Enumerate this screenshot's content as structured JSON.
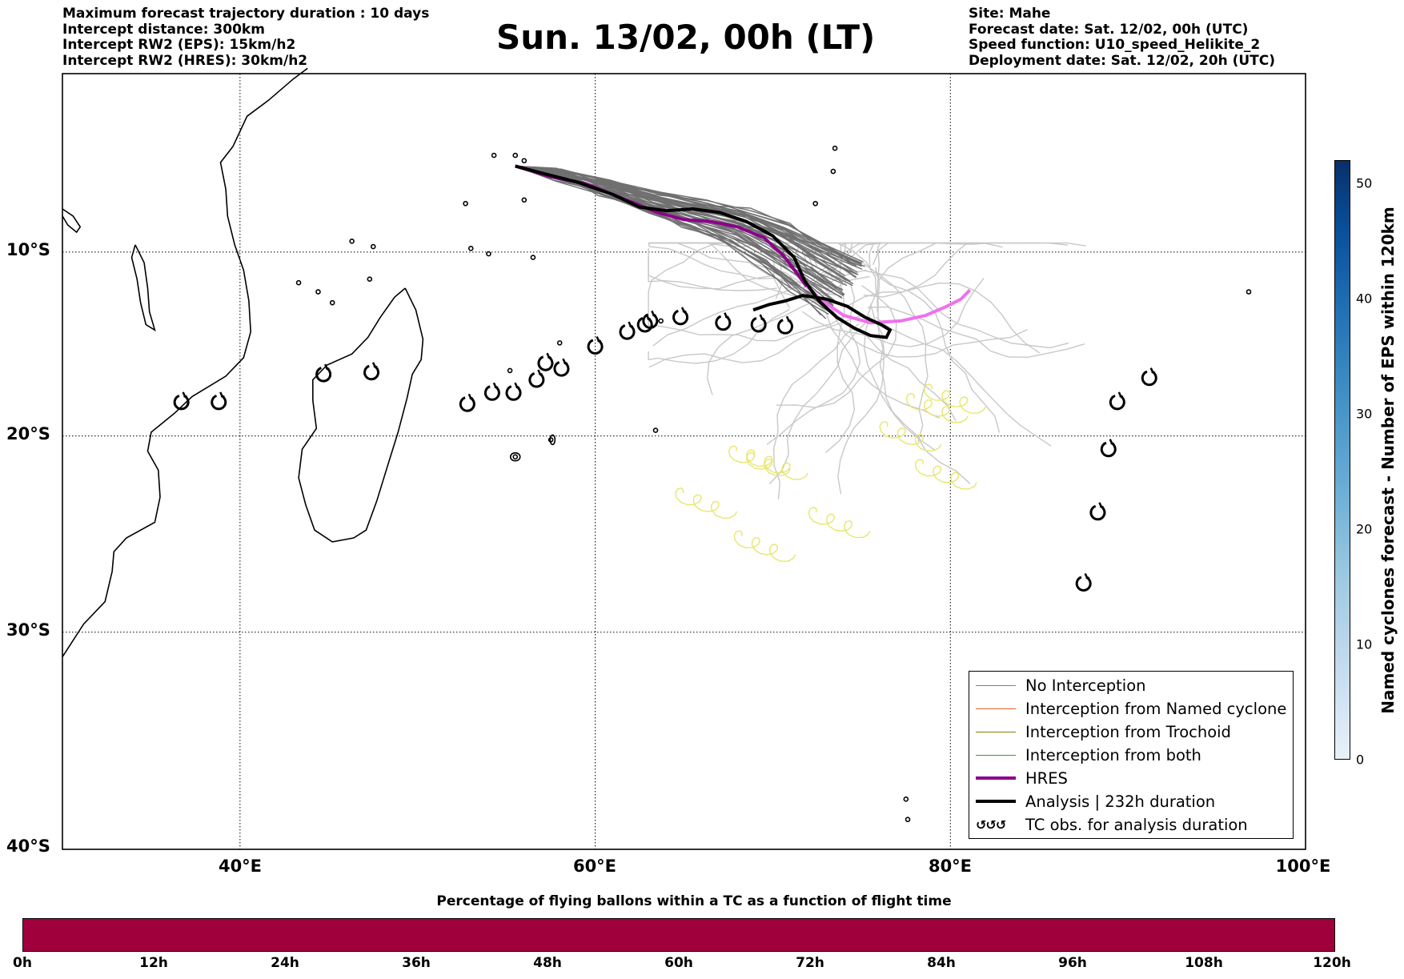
{
  "header_left": {
    "line1": "Maximum forecast trajectory duration : 10 days",
    "line2": "Intercept distance: 300km",
    "line3": "Intercept RW2 (EPS):  15km/h2",
    "line4": "Intercept RW2 (HRES): 30km/h2"
  },
  "title": "Sun. 13/02, 00h (LT)",
  "header_right": {
    "line1": "Site: Mahe",
    "line2": "Forecast date: Sat. 12/02, 00h (UTC)",
    "line3": "Speed function: U10_speed_Helikite_2",
    "line4": "Deployment date: Sat. 12/02, 20h (UTC)"
  },
  "map": {
    "lon_range": [
      30,
      100
    ],
    "lat_range": [
      -40,
      0
    ],
    "y_ticks": [
      "10°S",
      "20°S",
      "30°S",
      "40°S"
    ],
    "x_ticks": [
      "40°E",
      "60°E",
      "80°E",
      "100°E"
    ],
    "grid": true
  },
  "legend": {
    "items": [
      {
        "label": "No Interception",
        "color": "#808080"
      },
      {
        "label": "Interception from Named cyclone",
        "color": "#e8601c"
      },
      {
        "label": "Interception from Trochoid",
        "color": "#808000"
      },
      {
        "label": "Interception from both",
        "color": "#2ca02c"
      },
      {
        "label": "HRES",
        "color": "#8b008b"
      },
      {
        "label": "Analysis | 232h duration",
        "color": "#000000"
      },
      {
        "label": "TC obs. for analysis duration",
        "color": "#000000"
      }
    ],
    "tc_glyphs": "↺↺↺"
  },
  "colorbar_right": {
    "label": "Named cyclones forecast - Number of EPS within 120km",
    "ticks": [
      "0",
      "10",
      "20",
      "30",
      "40",
      "50"
    ],
    "range": [
      0,
      52
    ]
  },
  "colorbar_bottom": {
    "label": "Percentage of flying ballons within a TC as a function of flight time",
    "ticks": [
      "0h",
      "12h",
      "24h",
      "36h",
      "48h",
      "60h",
      "72h",
      "84h",
      "96h",
      "108h",
      "120h"
    ],
    "color": "#a0003c"
  },
  "tc_obs_positions": [
    {
      "lon": 36.7,
      "lat": -18.2
    },
    {
      "lon": 38.8,
      "lat": -18.2
    },
    {
      "lon": 44.7,
      "lat": -16.7
    },
    {
      "lon": 47.4,
      "lat": -16.6
    },
    {
      "lon": 52.8,
      "lat": -18.3
    },
    {
      "lon": 54.2,
      "lat": -17.7
    },
    {
      "lon": 55.4,
      "lat": -17.7
    },
    {
      "lon": 56.7,
      "lat": -17.0
    },
    {
      "lon": 57.2,
      "lat": -16.1
    },
    {
      "lon": 58.1,
      "lat": -16.4
    },
    {
      "lon": 60.0,
      "lat": -15.2
    },
    {
      "lon": 61.8,
      "lat": -14.4
    },
    {
      "lon": 62.8,
      "lat": -14.0
    },
    {
      "lon": 63.1,
      "lat": -13.8
    },
    {
      "lon": 64.8,
      "lat": -13.6
    },
    {
      "lon": 67.2,
      "lat": -13.9
    },
    {
      "lon": 69.2,
      "lat": -14.0
    },
    {
      "lon": 70.7,
      "lat": -14.1
    },
    {
      "lon": 91.2,
      "lat": -16.9
    },
    {
      "lon": 89.4,
      "lat": -18.2
    },
    {
      "lon": 88.9,
      "lat": -20.7
    },
    {
      "lon": 88.3,
      "lat": -24.0
    },
    {
      "lon": 87.5,
      "lat": -27.6
    }
  ],
  "analysis_track": [
    [
      55.5,
      -5.2
    ],
    [
      57.0,
      -5.6
    ],
    [
      59.0,
      -6.1
    ],
    [
      61.0,
      -6.8
    ],
    [
      62.5,
      -7.5
    ],
    [
      64.0,
      -7.7
    ],
    [
      65.5,
      -7.6
    ],
    [
      67.0,
      -7.8
    ],
    [
      68.5,
      -8.3
    ],
    [
      70.0,
      -9.1
    ],
    [
      71.2,
      -10.3
    ],
    [
      71.8,
      -11.6
    ],
    [
      72.6,
      -12.7
    ],
    [
      73.6,
      -13.6
    ],
    [
      74.6,
      -14.2
    ],
    [
      75.5,
      -14.6
    ],
    [
      76.4,
      -14.7
    ],
    [
      76.6,
      -14.3
    ],
    [
      76.1,
      -14.0
    ],
    [
      75.2,
      -13.6
    ],
    [
      74.2,
      -13.0
    ],
    [
      73.0,
      -12.6
    ],
    [
      71.7,
      -12.4
    ],
    [
      70.7,
      -12.7
    ],
    [
      69.8,
      -12.9
    ],
    [
      68.9,
      -13.2
    ]
  ],
  "hres_track": [
    [
      55.5,
      -5.2
    ],
    [
      57.5,
      -5.8
    ],
    [
      59.5,
      -6.2
    ],
    [
      61.5,
      -7.0
    ],
    [
      63.5,
      -7.8
    ],
    [
      65.0,
      -8.2
    ],
    [
      66.5,
      -8.3
    ],
    [
      68.0,
      -8.6
    ],
    [
      69.5,
      -9.2
    ],
    [
      70.6,
      -10.2
    ],
    [
      71.3,
      -11.1
    ],
    [
      71.9,
      -11.9
    ]
  ],
  "hres_track_late": [
    [
      71.9,
      -11.9
    ],
    [
      72.8,
      -12.7
    ],
    [
      74.0,
      -13.5
    ],
    [
      75.5,
      -13.9
    ],
    [
      77.2,
      -13.8
    ],
    [
      78.6,
      -13.5
    ],
    [
      79.8,
      -13.0
    ],
    [
      80.6,
      -12.6
    ],
    [
      81.1,
      -12.1
    ]
  ]
}
